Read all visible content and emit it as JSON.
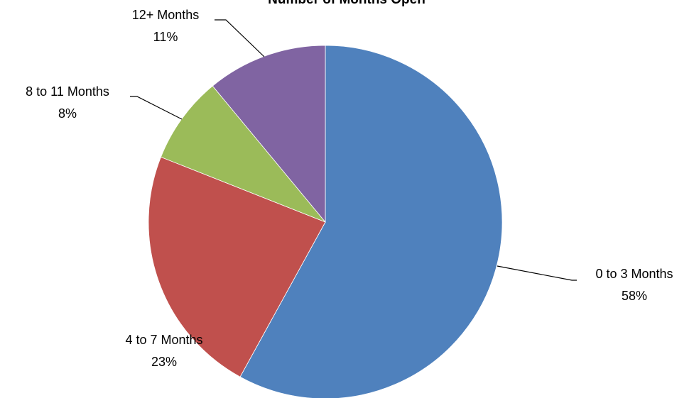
{
  "chart_data": {
    "type": "pie",
    "title": "Number of Months Open",
    "categories": [
      "0 to 3 Months",
      "4 to 7 Months",
      "8 to 11 Months",
      "12+ Months"
    ],
    "values": [
      58,
      23,
      8,
      11
    ],
    "value_labels": [
      "58%",
      "23%",
      "8%",
      "11%"
    ],
    "colors": [
      "#4f81bd",
      "#c0504d",
      "#9bbb59",
      "#8064a2"
    ]
  }
}
